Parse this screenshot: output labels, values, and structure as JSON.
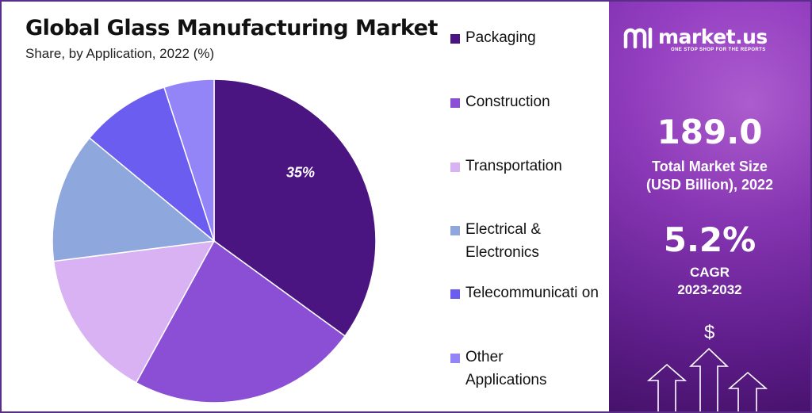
{
  "chart_data": {
    "type": "pie",
    "title": "Global Glass Manufacturing Market",
    "subtitle": "Share, by Application, 2022 (%)",
    "slices": [
      {
        "label": "Packaging",
        "value": 35,
        "color": "#4a1580",
        "data_label": "35%"
      },
      {
        "label": "Construction",
        "value": 23,
        "color": "#8a4fd4",
        "data_label": ""
      },
      {
        "label": "Transportation",
        "value": 15,
        "color": "#d8b2f2",
        "data_label": ""
      },
      {
        "label": "Electrical & Electronics",
        "value": 13,
        "color": "#8ea7dc",
        "data_label": ""
      },
      {
        "label": "Telecommunication",
        "value": 9,
        "color": "#6b5df0",
        "data_label": ""
      },
      {
        "label": "Other Applications",
        "value": 5,
        "color": "#9385f7",
        "data_label": ""
      }
    ],
    "legend_labels": [
      "Packaging",
      "Construction",
      "Transportation",
      "Electrical & Electronics",
      "Telecommunicati on",
      "Other Applications"
    ],
    "legend_position": "right"
  },
  "brand": {
    "name": "market.us",
    "tagline": "ONE STOP SHOP FOR THE REPORTS"
  },
  "stats": {
    "market_size_value": "189.0",
    "market_size_label_line1": "Total Market Size",
    "market_size_label_line2": "(USD Billion), 2022",
    "cagr_value": "5.2%",
    "cagr_label_line1": "CAGR",
    "cagr_label_line2": "2023-2032"
  },
  "decor": {
    "currency_symbol": "$"
  }
}
